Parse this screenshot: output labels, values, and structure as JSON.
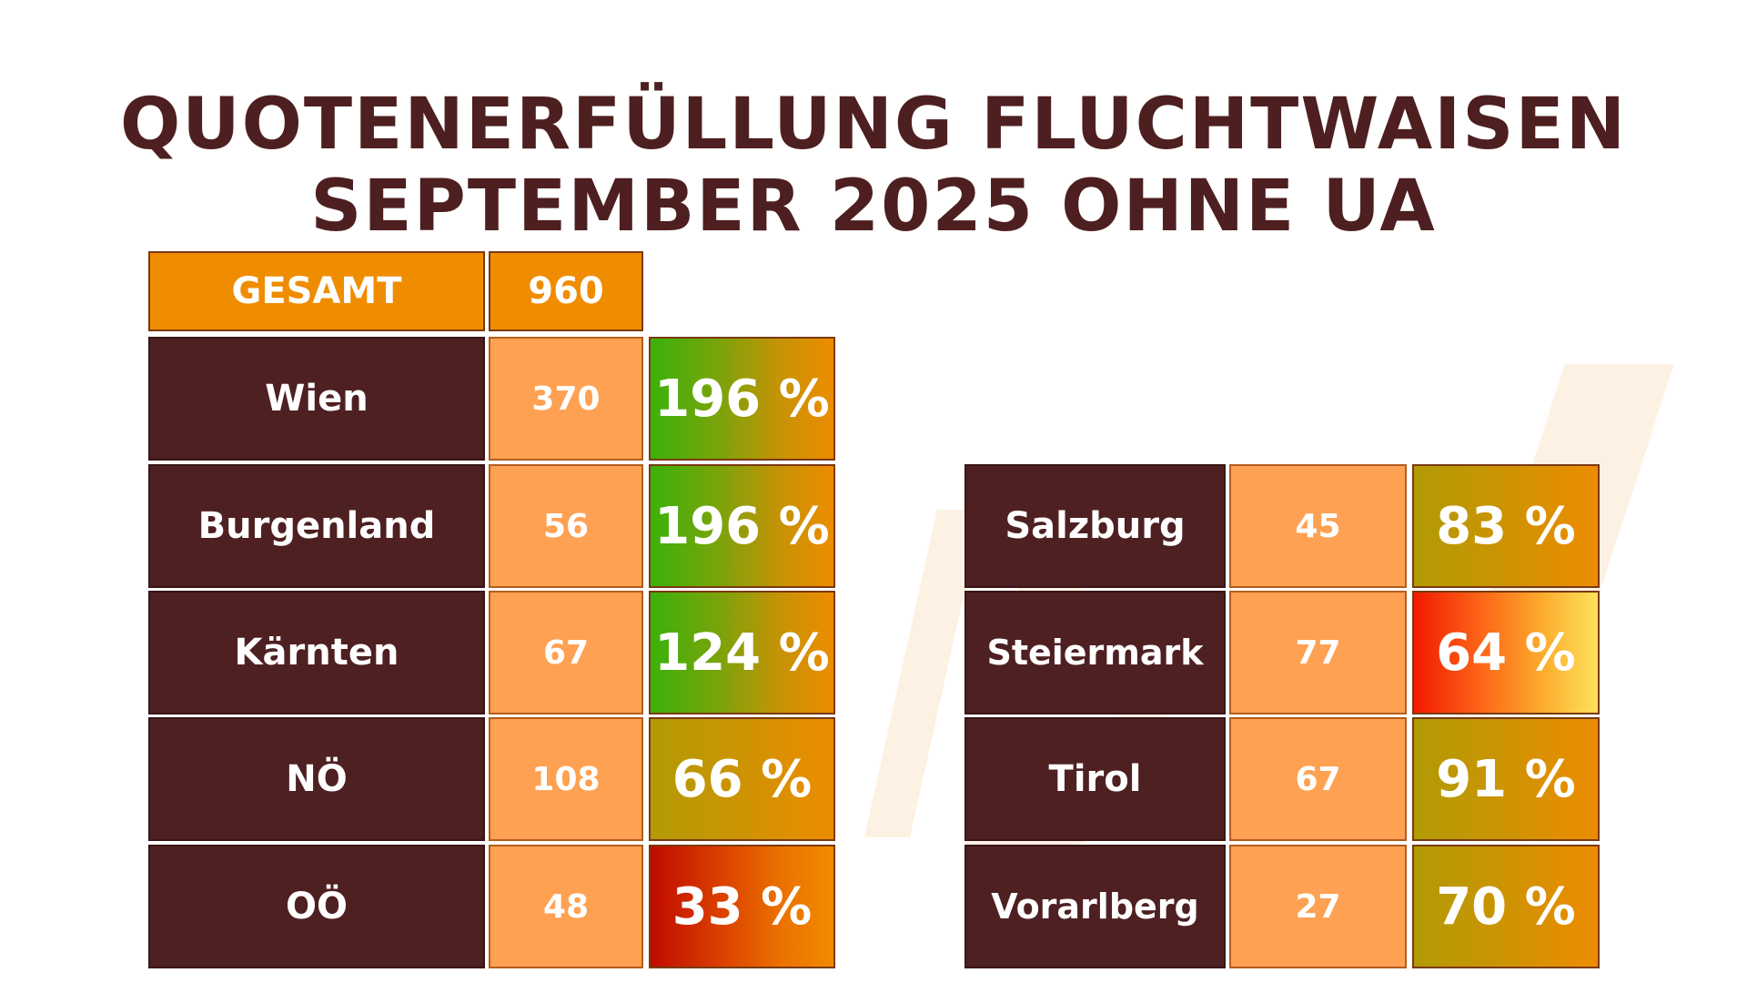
{
  "title": {
    "line1": "QUOTENERFÜLLUNG FLUCHTWAISEN",
    "line2": "SEPTEMBER 2025 OHNE UA"
  },
  "total": {
    "label": "GESAMT",
    "value": "960"
  },
  "left_rows": [
    {
      "name": "Wien",
      "count": "370",
      "percent": "196 %"
    },
    {
      "name": "Burgenland",
      "count": "56",
      "percent": "196 %"
    },
    {
      "name": "Kärnten",
      "count": "67",
      "percent": "124 %"
    },
    {
      "name": "NÖ",
      "count": "108",
      "percent": "66 %"
    },
    {
      "name": "OÖ",
      "count": "48",
      "percent": "33 %"
    }
  ],
  "right_rows": [
    {
      "name": "Salzburg",
      "count": "45",
      "percent": "83 %"
    },
    {
      "name": "Steiermark",
      "count": "77",
      "percent": "64 %"
    },
    {
      "name": "Tirol",
      "count": "67",
      "percent": "91 %"
    },
    {
      "name": "Vorarlberg",
      "count": "27",
      "percent": "70 %"
    }
  ],
  "colors": {
    "title": "#4e1f20",
    "name_cell": "#4e2022",
    "count_cell": "#fea153",
    "total_cell": "#f08c00"
  }
}
